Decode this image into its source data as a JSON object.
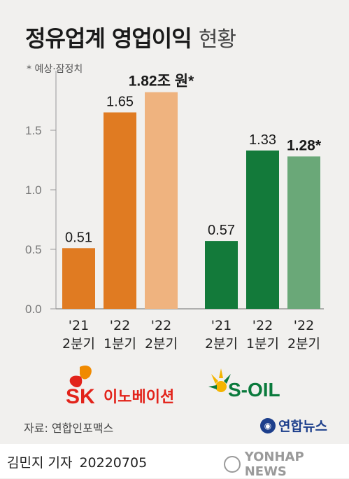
{
  "title_main": "정유업계 영업이익",
  "title_light": "현황",
  "note": "* 예상·잠정치",
  "chart_data": {
    "type": "bar",
    "ylim": [
      0,
      2.0
    ],
    "yticks": [
      "0.0",
      "0.5",
      "1.0",
      "1.5"
    ],
    "grid": false,
    "groups": [
      {
        "name": "SK이노베이션",
        "bars": [
          {
            "label": "'21\n2분기",
            "value": 0.51,
            "text": "0.51",
            "color": "#e07b22",
            "bold": false
          },
          {
            "label": "'22\n1분기",
            "value": 1.65,
            "text": "1.65",
            "color": "#e07b22",
            "bold": false
          },
          {
            "label": "'22\n2분기",
            "value": 1.82,
            "text": "1.82조 원*",
            "color": "#efb37f",
            "bold": true
          }
        ]
      },
      {
        "name": "S-OIL",
        "bars": [
          {
            "label": "'21\n2분기",
            "value": 0.57,
            "text": "0.57",
            "color": "#137a3a",
            "bold": false
          },
          {
            "label": "'22\n1분기",
            "value": 1.33,
            "text": "1.33",
            "color": "#137a3a",
            "bold": false
          },
          {
            "label": "'22\n2분기",
            "value": 1.28,
            "text": "1.28*",
            "color": "#6aa878",
            "bold": true
          }
        ]
      }
    ]
  },
  "logos": {
    "sk_text": "SK",
    "sk_sub": "이노베이션",
    "soil_text": "S-OIL",
    "sk_red": "#e2231a",
    "sk_orange": "#f08a00",
    "soil_green": "#0a7a3c",
    "soil_yellow": "#f4b400"
  },
  "source": "자료: 연합인포맥스",
  "publisher": "연합뉴스",
  "author": "김민지 기자",
  "date": "20220705",
  "watermark": "YONHAP NEWS"
}
